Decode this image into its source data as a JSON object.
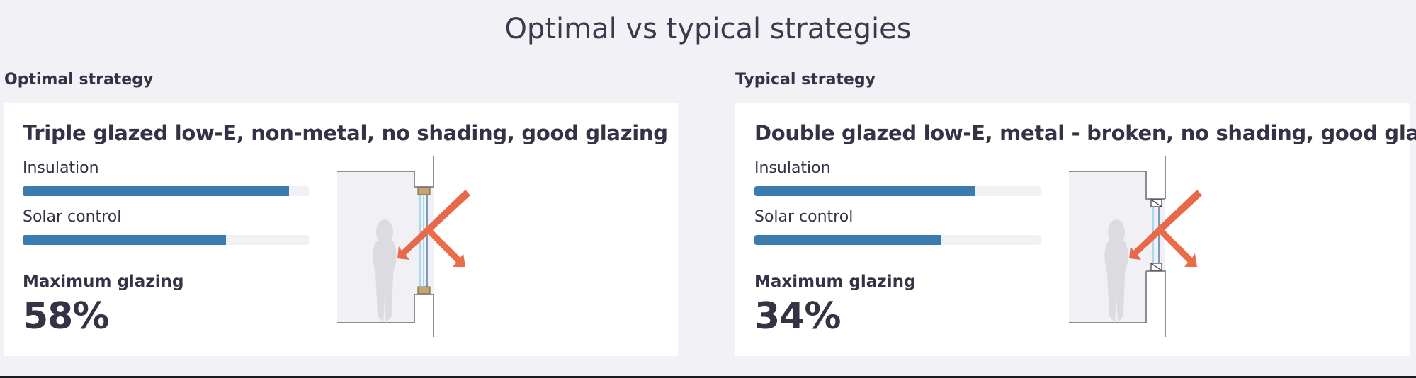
{
  "page": {
    "title": "Optimal vs typical strategies"
  },
  "strategies": [
    {
      "section_label": "Optimal strategy",
      "title": "Triple glazed low-E, non-metal, no shading, good glazing",
      "metrics": [
        {
          "label": "Insulation",
          "value_pct": 93
        },
        {
          "label": "Solar control",
          "value_pct": 71
        }
      ],
      "max_glazing_label": "Maximum glazing",
      "max_glazing_value": "58%",
      "diagram": {
        "glazing": "triple",
        "frame": "non-metal",
        "frame_icon": "timber-frame-icon"
      }
    },
    {
      "section_label": "Typical strategy",
      "title": "Double glazed low-E, metal - broken, no shading, good glazing",
      "metrics": [
        {
          "label": "Insulation",
          "value_pct": 77
        },
        {
          "label": "Solar control",
          "value_pct": 65
        }
      ],
      "max_glazing_label": "Maximum glazing",
      "max_glazing_value": "34%",
      "diagram": {
        "glazing": "double",
        "frame": "metal - broken",
        "frame_icon": "thermally-broken-metal-frame-icon"
      }
    }
  ],
  "colors": {
    "background": "#f2f2f6",
    "card": "#ffffff",
    "text": "#343346",
    "bar_fill": "#3a7bb0",
    "bar_track": "#f1f1f5",
    "arrow": "#e8684a",
    "timber_frame": "#c9a46e",
    "glass_light": "#7fcbe8",
    "glass_dark": "#3a6e9e",
    "room_fill": "#f1f1f5",
    "person": "#dcdce0"
  }
}
